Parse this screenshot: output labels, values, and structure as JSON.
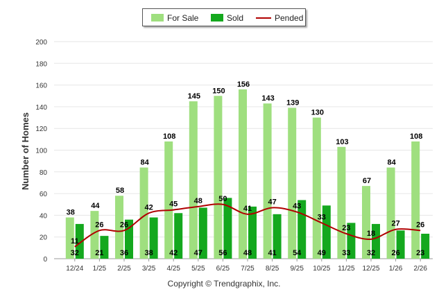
{
  "chart_data": {
    "type": "bar",
    "ylabel": "Number of Homes",
    "xlabel": "",
    "ylim": [
      0,
      200
    ],
    "yticks": [
      "0",
      "20",
      "40",
      "60",
      "80",
      "100",
      "120",
      "140",
      "160",
      "180",
      "200"
    ],
    "categories": [
      "12/24",
      "1/25",
      "2/25",
      "3/25",
      "4/25",
      "5/25",
      "6/25",
      "7/25",
      "8/25",
      "9/25",
      "10/25",
      "11/25",
      "12/25",
      "1/26",
      "2/26"
    ],
    "series": [
      {
        "name": "For Sale",
        "type": "bar",
        "color": "#9fdf7f",
        "values": [
          38,
          44,
          58,
          84,
          108,
          145,
          150,
          156,
          143,
          139,
          130,
          103,
          67,
          84,
          108
        ]
      },
      {
        "name": "Sold",
        "type": "bar",
        "color": "#14a81e",
        "values": [
          32,
          21,
          36,
          38,
          42,
          47,
          56,
          48,
          41,
          54,
          49,
          33,
          32,
          26,
          23
        ]
      },
      {
        "name": "Pended",
        "type": "line",
        "color": "#b00000",
        "values": [
          11,
          26,
          26,
          42,
          45,
          48,
          50,
          41,
          47,
          43,
          33,
          23,
          18,
          27,
          26
        ]
      }
    ],
    "legend": [
      "For Sale",
      "Sold",
      "Pended"
    ],
    "legend_position": "top-center"
  },
  "footer": {
    "copyright": "Copyright © Trendgraphix, Inc."
  }
}
